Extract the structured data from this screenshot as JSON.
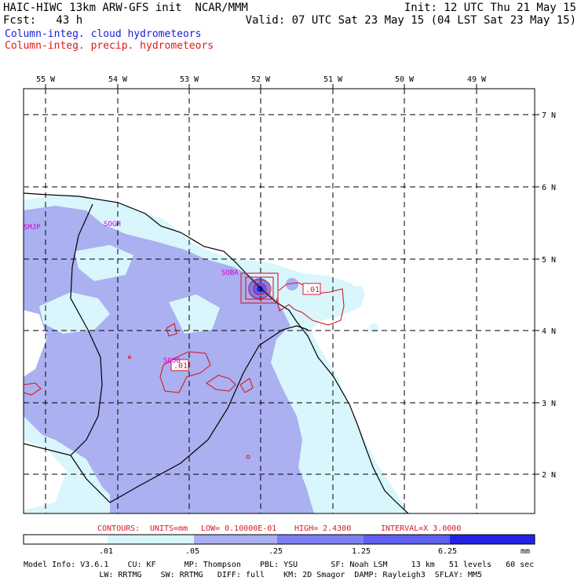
{
  "header": {
    "title_left": "HAIC-HIWC 13km ARW-GFS init  NCAR/MMM",
    "fcst": "Fcst:   43 h",
    "init": "Init: 12 UTC Thu 21 May 15",
    "valid": "Valid: 07 UTC Sat 23 May 15 (04 LST Sat 23 May 15)",
    "field_cloud": "Column-integ. cloud hydrometeors",
    "field_precip": "Column-integ. precip. hydrometeors"
  },
  "colors": {
    "cloud_label": "#1a1adc",
    "precip_label": "#dc1a1a",
    "contour": "#d61a2a",
    "station": "#d000d0",
    "fill_01": "#d8f6fc",
    "fill_05": "#aab0f0",
    "fill_25": "#7d7ff2",
    "fill_125": "#5f5ff0",
    "fill_625": "#2323e6"
  },
  "map": {
    "lon_labels": [
      "55 W",
      "54 W",
      "53 W",
      "52 W",
      "51 W",
      "50 W",
      "49 W"
    ],
    "lat_labels": [
      "7 N",
      "6 N",
      "5 N",
      "4 N",
      "3 N",
      "2 N"
    ],
    "stations": [
      "SMJP",
      "SOGM",
      "SOBA",
      "SOOG"
    ],
    "contour_labels": [
      ".01",
      ".01"
    ]
  },
  "contour_note": {
    "contours": "CONTOURS:",
    "units": "UNITS=mm",
    "low": "LOW= 0.10000E-01",
    "high": "HIGH=  2.4300",
    "interval": "INTERVAL=X  3.0000"
  },
  "colorbar": {
    "ticks": [
      ".01",
      ".05",
      ".25",
      "1.25",
      "6.25"
    ],
    "unit": "mm"
  },
  "footer": {
    "line1": "Model Info: V3.6.1    CU: KF      MP: Thompson    PBL: YSU       SF: Noah LSM     13 km   51 levels   60 sec",
    "line2": "                LW: RRTMG    SW: RRTMG   DIFF: full    KM: 2D Smagor  DAMP: Rayleigh3  SFLAY: MM5"
  }
}
